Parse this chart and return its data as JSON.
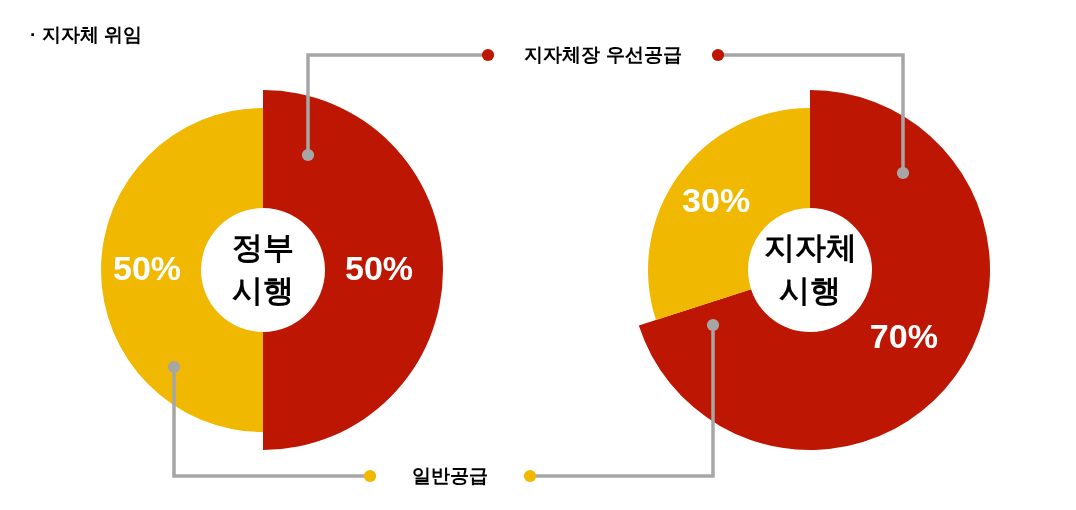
{
  "chart_data": {
    "type": "donut",
    "title": "· 지자체 위임",
    "categories": [
      "지자체장 우선공급",
      "일반공급"
    ],
    "colors": [
      "#bd1602",
      "#f0b800"
    ],
    "legend": "center",
    "series": [
      {
        "name": "정부 시행",
        "values": [
          50,
          50
        ],
        "value_labels": [
          "50%",
          "50%"
        ]
      },
      {
        "name": "지자체 시행",
        "values": [
          70,
          30
        ],
        "value_labels": [
          "70%",
          "30%"
        ]
      }
    ]
  }
}
